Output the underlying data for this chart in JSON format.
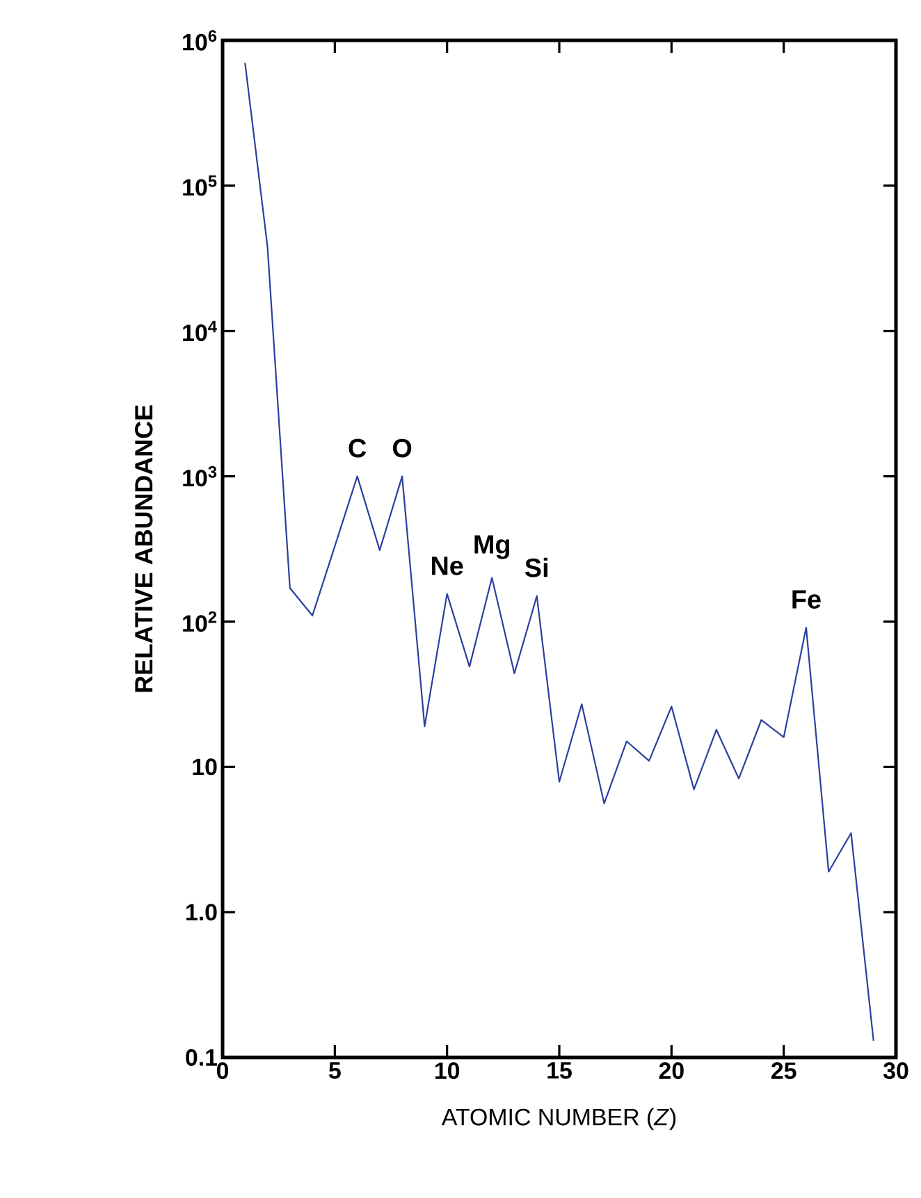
{
  "chart_data": {
    "type": "line",
    "xlabel": "ATOMIC NUMBER (*Z*)",
    "ylabel": "RELATIVE ABUNDANCE",
    "color": "#2b3f9e",
    "log": "y",
    "x": [
      1,
      2,
      3,
      4,
      5,
      6,
      7,
      8,
      9,
      10,
      11,
      12,
      13,
      14,
      15,
      16,
      17,
      18,
      19,
      20,
      21,
      22,
      23,
      24,
      25,
      26,
      27,
      28,
      29
    ],
    "values": [
      700000,
      38000,
      170,
      110,
      330,
      1000,
      310,
      1000,
      19,
      155,
      49,
      200,
      44,
      150,
      7.9,
      27,
      5.6,
      15,
      11,
      26,
      7,
      18,
      8.3,
      21,
      16,
      91,
      1.9,
      3.5,
      0.13
    ],
    "xlim": [
      0,
      30
    ],
    "ylim": [
      0.1,
      1000000
    ],
    "xticks": [
      0,
      5,
      10,
      15,
      20,
      25,
      30
    ],
    "yticks": [
      {
        "value": 0.1,
        "label": "0.1"
      },
      {
        "value": 1,
        "label": "1.0"
      },
      {
        "value": 10,
        "label": "10"
      },
      {
        "value": 100,
        "label": "10$^{2}$"
      },
      {
        "value": 1000,
        "label": "10$^{3}$"
      },
      {
        "value": 10000,
        "label": "10$^{4}$"
      },
      {
        "value": 100000,
        "label": "10$^{5}$"
      },
      {
        "value": 1000000,
        "label": "10$^{6}$"
      }
    ],
    "annotations": [
      {
        "text": "C",
        "x": 6,
        "y": 1000
      },
      {
        "text": "O",
        "x": 8,
        "y": 1000
      },
      {
        "text": "Ne",
        "x": 10,
        "y": 155
      },
      {
        "text": "Mg",
        "x": 12,
        "y": 200
      },
      {
        "text": "Si",
        "x": 14,
        "y": 150
      },
      {
        "text": "Fe",
        "x": 26,
        "y": 91
      }
    ]
  }
}
